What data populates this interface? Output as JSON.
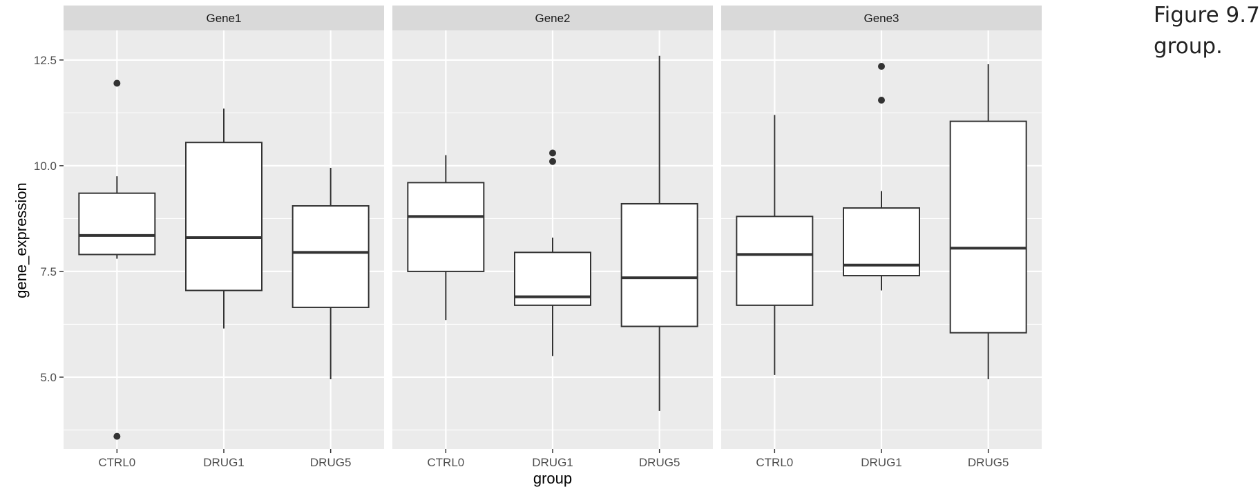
{
  "caption": {
    "line1": "Figure 9.7:",
    "line2": "group."
  },
  "colors": {
    "panel_bg": "#ebebeb",
    "strip_bg": "#d9d9d9",
    "grid": "#ffffff",
    "box_line": "#333333",
    "box_fill": "#ffffff"
  },
  "chart_data": {
    "type": "boxplot",
    "title": "",
    "xlabel": "group",
    "ylabel": "gene_expression",
    "ylim": [
      3.3,
      13.2
    ],
    "yticks": [
      5.0,
      7.5,
      10.0,
      12.5
    ],
    "ytick_labels": [
      "5.0",
      "7.5",
      "10.0",
      "12.5"
    ],
    "grid": true,
    "categories": [
      "CTRL0",
      "DRUG1",
      "DRUG5"
    ],
    "facets": [
      {
        "name": "Gene1",
        "boxes": [
          {
            "group": "CTRL0",
            "whisker_low": 7.8,
            "q1": 7.9,
            "median": 8.35,
            "q3": 9.35,
            "whisker_high": 9.75,
            "outliers": [
              11.95,
              3.6
            ]
          },
          {
            "group": "DRUG1",
            "whisker_low": 6.15,
            "q1": 7.05,
            "median": 8.3,
            "q3": 10.55,
            "whisker_high": 11.35,
            "outliers": []
          },
          {
            "group": "DRUG5",
            "whisker_low": 4.95,
            "q1": 6.65,
            "median": 7.95,
            "q3": 9.05,
            "whisker_high": 9.95,
            "outliers": []
          }
        ]
      },
      {
        "name": "Gene2",
        "boxes": [
          {
            "group": "CTRL0",
            "whisker_low": 6.35,
            "q1": 7.5,
            "median": 8.8,
            "q3": 9.6,
            "whisker_high": 10.25,
            "outliers": []
          },
          {
            "group": "DRUG1",
            "whisker_low": 5.5,
            "q1": 6.7,
            "median": 6.9,
            "q3": 7.95,
            "whisker_high": 8.3,
            "outliers": [
              10.3,
              10.1
            ]
          },
          {
            "group": "DRUG5",
            "whisker_low": 4.2,
            "q1": 6.2,
            "median": 7.35,
            "q3": 9.1,
            "whisker_high": 12.6,
            "outliers": []
          }
        ]
      },
      {
        "name": "Gene3",
        "boxes": [
          {
            "group": "CTRL0",
            "whisker_low": 5.05,
            "q1": 6.7,
            "median": 7.9,
            "q3": 8.8,
            "whisker_high": 11.2,
            "outliers": []
          },
          {
            "group": "DRUG1",
            "whisker_low": 7.05,
            "q1": 7.4,
            "median": 7.65,
            "q3": 9.0,
            "whisker_high": 9.4,
            "outliers": [
              12.35,
              11.55
            ]
          },
          {
            "group": "DRUG5",
            "whisker_low": 4.95,
            "q1": 6.05,
            "median": 8.05,
            "q3": 11.05,
            "whisker_high": 12.4,
            "outliers": []
          }
        ]
      }
    ]
  }
}
